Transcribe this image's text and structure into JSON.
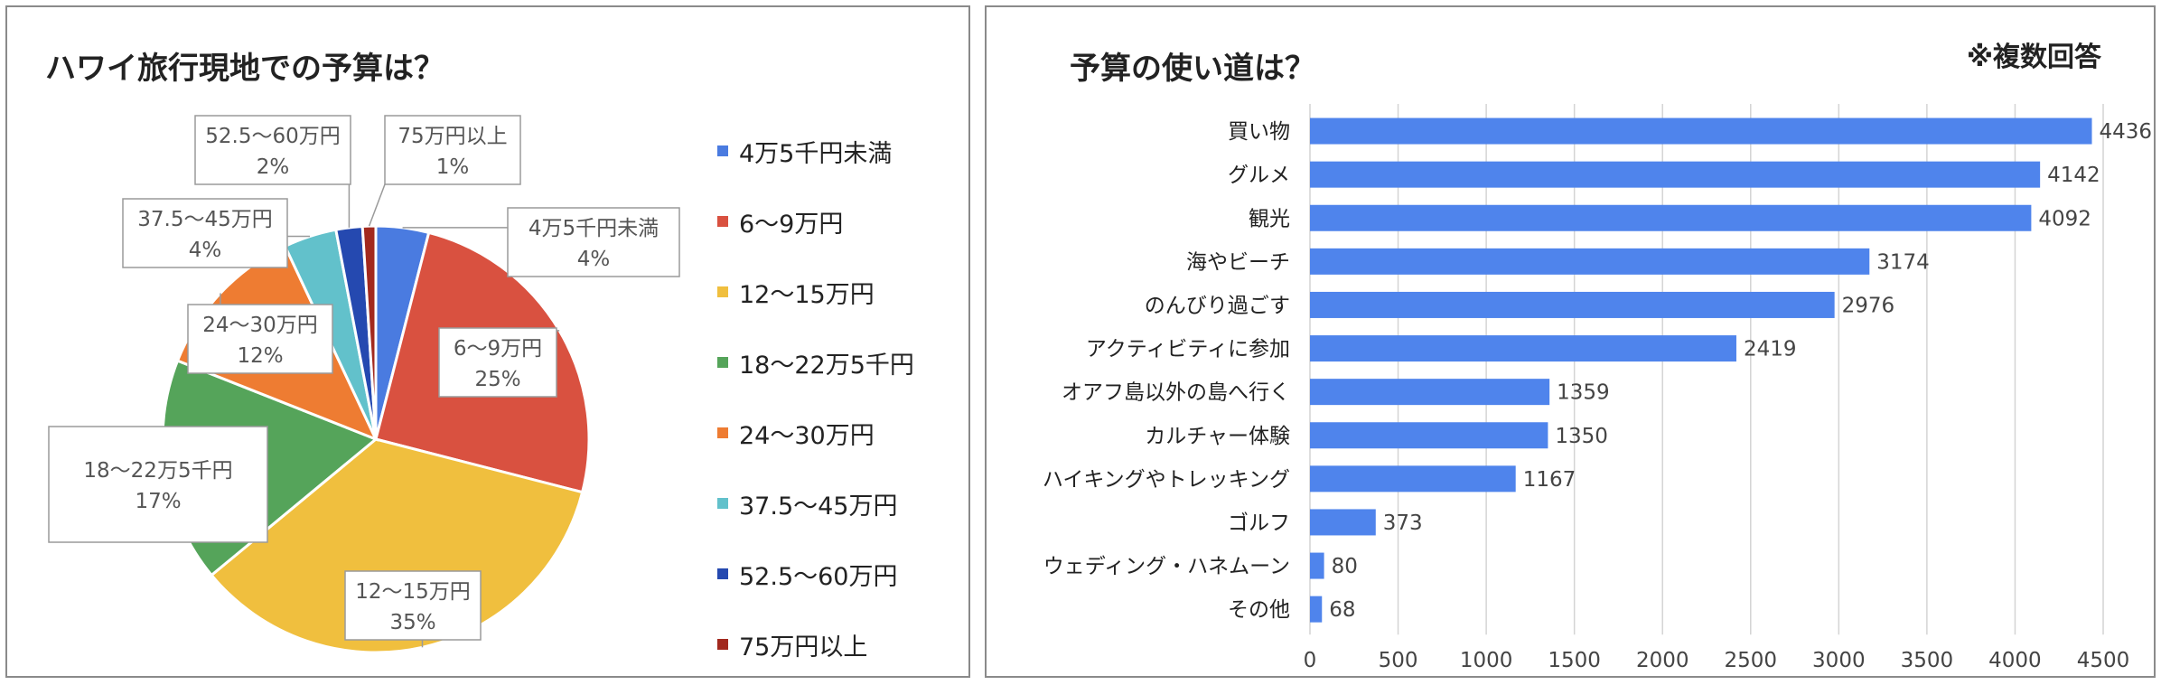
{
  "left_chart": {
    "title": "ハワイ旅行現地での予算は？",
    "chart_data": {
      "type": "pie",
      "slices": [
        {
          "label": "4万5千円未満",
          "percent": 4,
          "color": "#4A7BE0"
        },
        {
          "label": "6〜9万円",
          "percent": 25,
          "color": "#D95140"
        },
        {
          "label": "12〜15万円",
          "percent": 35,
          "color": "#F0BF3E"
        },
        {
          "label": "18〜22万5千円",
          "percent": 17,
          "color": "#55A45A"
        },
        {
          "label": "24〜30万円",
          "percent": 12,
          "color": "#EE7C32"
        },
        {
          "label": "37.5〜45万円",
          "percent": 4,
          "color": "#62C1CB"
        },
        {
          "label": "52.5〜60万円",
          "percent": 2,
          "color": "#2549B0"
        },
        {
          "label": "75万円以上",
          "percent": 1,
          "color": "#A2291E"
        }
      ],
      "legend_position": "right",
      "data_labels": [
        "4万5千円未満\n4%",
        "6〜9万円\n25%",
        "12〜15万円\n35%",
        "18〜22万5千円\n17%",
        "24〜30万円\n12%",
        "37.5〜45万円\n4%",
        "52.5〜60万円\n2%",
        "75万円以上\n1%"
      ]
    }
  },
  "right_chart": {
    "title": "予算の使い道は？",
    "note": "※複数回答",
    "chart_data": {
      "type": "bar",
      "orientation": "horizontal",
      "categories": [
        "買い物",
        "グルメ",
        "観光",
        "海やビーチ",
        "のんびり過ごす",
        "アクティビティに参加",
        "オアフ島以外の島へ行く",
        "カルチャー体験",
        "ハイキングやトレッキング",
        "ゴルフ",
        "ウェディング・ハネムーン",
        "その他"
      ],
      "values": [
        4436,
        4142,
        4092,
        3174,
        2976,
        2419,
        1359,
        1350,
        1167,
        373,
        80,
        68
      ],
      "xlim": [
        0,
        4500
      ],
      "xticks": [
        0,
        500,
        1000,
        1500,
        2000,
        2500,
        3000,
        3500,
        4000,
        4500
      ],
      "grid": "vertical",
      "color": "#4F84EC"
    }
  }
}
